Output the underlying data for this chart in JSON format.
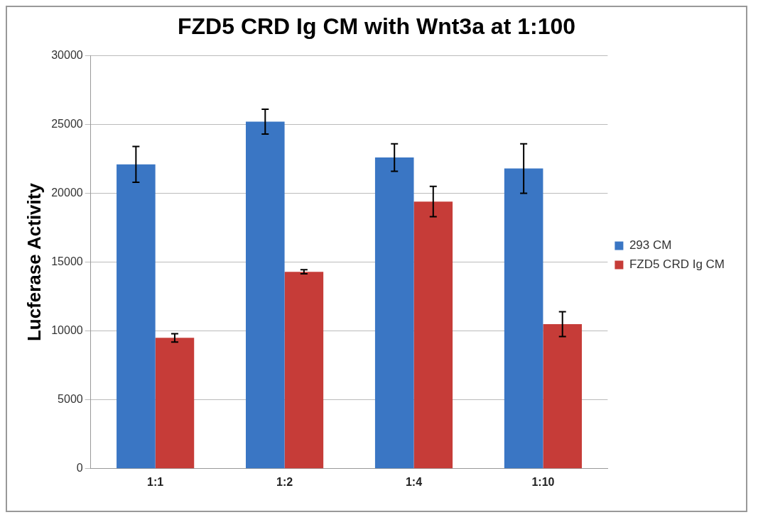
{
  "chart_data": {
    "type": "bar",
    "title": "FZD5 CRD Ig CM with Wnt3a at 1:100",
    "ylabel": "Lucferase Activity",
    "categories": [
      "1:1",
      "1:2",
      "1:4",
      "1:10"
    ],
    "series": [
      {
        "name": "293 CM",
        "color": "#3a76c4",
        "values": [
          22100,
          25200,
          22600,
          21800
        ],
        "errors": [
          1300,
          900,
          1000,
          1800
        ]
      },
      {
        "name": "FZD5 CRD Ig CM",
        "color": "#c63c38",
        "values": [
          9500,
          14300,
          19400,
          10500
        ],
        "errors": [
          300,
          150,
          1100,
          900
        ]
      }
    ],
    "ylim": [
      0,
      30000
    ],
    "yticks": [
      0,
      5000,
      10000,
      15000,
      20000,
      25000,
      30000
    ],
    "grid": "y",
    "legend": "right"
  }
}
